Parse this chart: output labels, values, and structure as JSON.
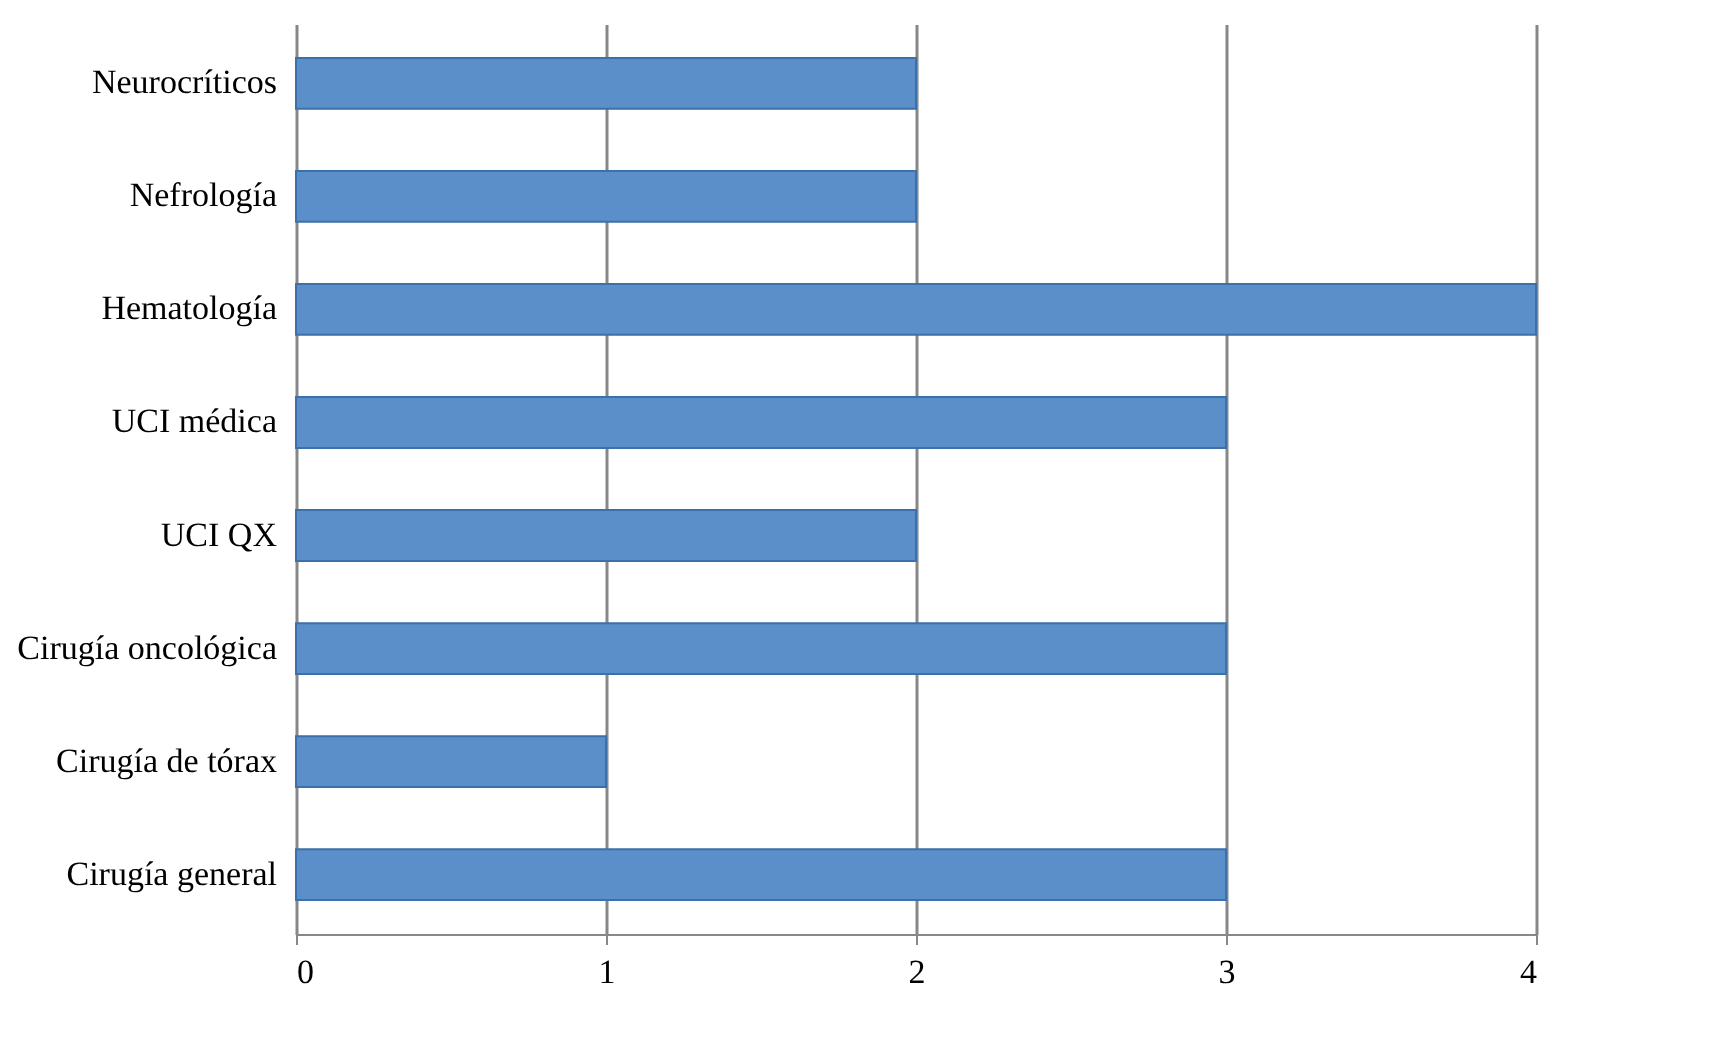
{
  "chart_data": {
    "type": "bar",
    "orientation": "horizontal",
    "categories": [
      "Neurocríticos",
      "Nefrología",
      "Hematología",
      "UCI médica",
      "UCI QX",
      "Cirugía oncológica",
      "Cirugía de tórax",
      "Cirugía general"
    ],
    "values": [
      2,
      2,
      4,
      3,
      2,
      3,
      1,
      3
    ],
    "color": "#5b8fc9",
    "xlim": [
      0,
      4
    ],
    "xticks": [
      0,
      1,
      2,
      3,
      4
    ],
    "grid": "x"
  }
}
